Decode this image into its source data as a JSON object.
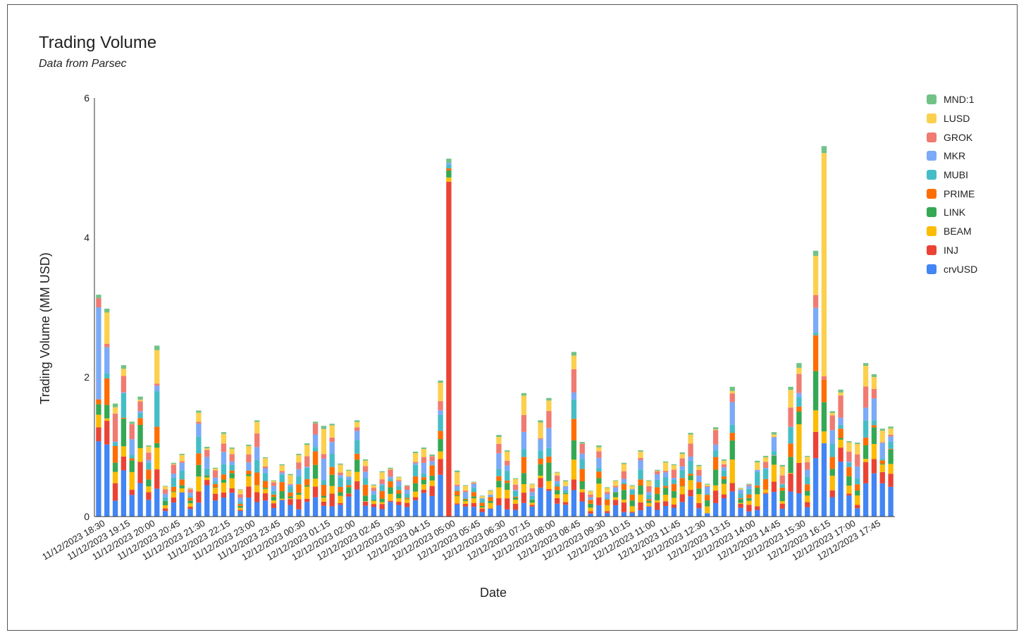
{
  "chart_data": {
    "type": "bar",
    "stacked": true,
    "title": "Trading Volume",
    "subtitle": "Data from Parsec",
    "xlabel": "Date",
    "ylabel": "Trading Volume (MM USD)",
    "ylim": [
      0,
      6
    ],
    "yticks": [
      0,
      2,
      4,
      6
    ],
    "grid": false,
    "legend_position": "right",
    "x_tick_labels": [
      "11/12/2023 18:30",
      "11/12/2023 19:15",
      "11/12/2023 20:00",
      "11/12/2023 20:45",
      "11/12/2023 21:30",
      "11/12/2023 22:15",
      "11/12/2023 23:00",
      "11/12/2023 23:45",
      "12/12/2023 00:30",
      "12/12/2023 01:15",
      "12/12/2023 02:00",
      "12/12/2023 02:45",
      "12/12/2023 03:30",
      "12/12/2023 04:15",
      "12/12/2023 05:00",
      "12/12/2023 05:45",
      "12/12/2023 06:30",
      "12/12/2023 07:15",
      "12/12/2023 08:00",
      "12/12/2023 08:45",
      "12/12/2023 09:30",
      "12/12/2023 10:15",
      "12/12/2023 11:00",
      "12/12/2023 11:45",
      "12/12/2023 12:30",
      "12/12/2023 13:15",
      "12/12/2023 14:00",
      "12/12/2023 14:45",
      "12/12/2023 15:30",
      "12/12/2023 16:15",
      "12/12/2023 17:00",
      "12/12/2023 17:45"
    ],
    "legend_order": [
      "MND:1",
      "LUSD",
      "GROK",
      "MKR",
      "MUBI",
      "PRIME",
      "LINK",
      "BEAM",
      "INJ",
      "crvUSD"
    ],
    "series_colors": {
      "crvUSD": "#4285f4",
      "INJ": "#ea4335",
      "BEAM": "#fbbc04",
      "LINK": "#34a853",
      "PRIME": "#ff6d01",
      "MUBI": "#46bdc6",
      "MKR": "#7baaf7",
      "GROK": "#f07b72",
      "LUSD": "#fcd04f",
      "MND:1": "#71c287"
    },
    "bar_totals": [
      3.18,
      2.98,
      1.62,
      2.17,
      1.36,
      1.72,
      1.02,
      2.45,
      0.44,
      0.77,
      0.9,
      0.41,
      1.52,
      1.0,
      0.7,
      1.21,
      0.99,
      0.39,
      1.03,
      1.38,
      0.85,
      0.52,
      0.75,
      0.61,
      0.9,
      1.05,
      1.36,
      1.3,
      1.33,
      0.76,
      0.67,
      1.38,
      0.82,
      0.46,
      0.65,
      0.7,
      0.57,
      0.45,
      0.93,
      0.99,
      0.89,
      1.95,
      5.13,
      0.66,
      0.45,
      0.5,
      0.3,
      0.38,
      1.17,
      0.95,
      0.55,
      1.77,
      0.47,
      1.38,
      1.7,
      0.64,
      0.52,
      2.36,
      1.07,
      0.37,
      1.02,
      0.42,
      0.52,
      0.77,
      0.45,
      0.95,
      0.52,
      0.67,
      0.79,
      0.75,
      0.92,
      1.2,
      0.74,
      0.47,
      1.28,
      0.82,
      1.86,
      0.41,
      0.47,
      0.8,
      0.87,
      1.21,
      0.74,
      1.86,
      2.2,
      0.87,
      3.81,
      5.31,
      1.51,
      1.82,
      1.08,
      1.06,
      2.2,
      2.04,
      1.26,
      1.29
    ],
    "sample_bar_breakdowns": [
      {
        "label": "11/12/2023 18:30",
        "crvUSD": 1.08,
        "INJ": 0.2,
        "BEAM": 0.18,
        "LINK": 0.15,
        "PRIME": 0.07,
        "MKR": 1.32,
        "GROK": 0.13,
        "MND:1": 0.05
      },
      {
        "label": "12/12/2023 05:00",
        "crvUSD": 0.0,
        "INJ": 4.8,
        "BEAM": 0.06,
        "LINK": 0.1,
        "PRIME": 0.03,
        "MUBI": 0.05,
        "MKR": 0.03,
        "MND:1": 0.06
      },
      {
        "label": "12/12/2023 16:15",
        "crvUSD": 1.05,
        "BEAM": 0.17,
        "LINK": 0.42,
        "PRIME": 0.32,
        "GROK": 0.05,
        "LUSD": 3.2,
        "MND:1": 0.1
      }
    ]
  }
}
